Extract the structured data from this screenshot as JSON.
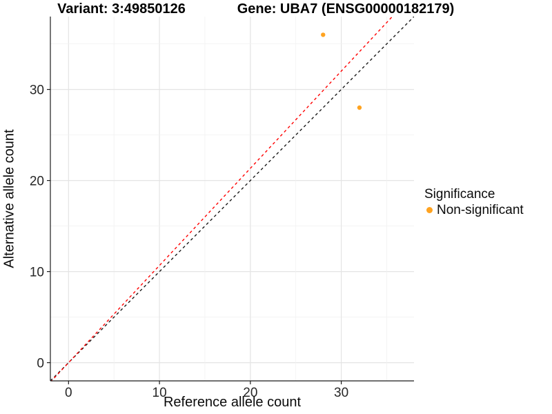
{
  "chart_data": {
    "type": "scatter",
    "titles": {
      "variant": "Variant: 3:49850126",
      "gene": "Gene: UBA7 (ENSG00000182179)"
    },
    "xlabel": "Reference allele count",
    "ylabel": "Alternative allele count",
    "xlim": [
      -2,
      38
    ],
    "ylim": [
      -2,
      38
    ],
    "xticks": [
      0,
      10,
      20,
      30
    ],
    "yticks": [
      0,
      10,
      20,
      30
    ],
    "minor_grid_step": 5,
    "grid": true,
    "series": [
      {
        "name": "Non-significant",
        "color": "#FFA320",
        "points": [
          {
            "x": 28,
            "y": 36
          },
          {
            "x": 32,
            "y": 28
          }
        ]
      }
    ],
    "ablines": [
      {
        "name": "identity-line",
        "slope": 1.0,
        "intercept": 0,
        "color": "#1A1A1A",
        "dash": true
      },
      {
        "name": "allelic-ratio-line",
        "slope": 1.067,
        "intercept": 0,
        "color": "#FF0000",
        "dash": true
      }
    ],
    "legend": {
      "title": "Significance",
      "position": "right",
      "entries": [
        {
          "label": "Non-significant",
          "color": "#FFA320"
        }
      ]
    },
    "colors": {
      "grid_major": "#E4E4E4",
      "grid_minor": "#F1F1F1",
      "axis": "#1A1A1A",
      "tick_text": "#262626",
      "panel_background": "#FFFFFF"
    }
  }
}
